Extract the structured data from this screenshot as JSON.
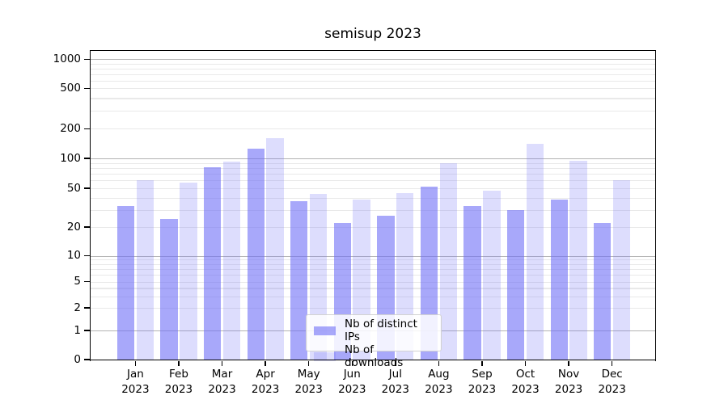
{
  "title": "semisup 2023",
  "chart_data": {
    "type": "bar",
    "title": "semisup 2023",
    "categories": [
      "Jan 2023",
      "Feb 2023",
      "Mar 2023",
      "Apr 2023",
      "May 2023",
      "Jun 2023",
      "Jul 2023",
      "Aug 2023",
      "Sep 2023",
      "Oct 2023",
      "Nov 2023",
      "Dec 2023"
    ],
    "series": [
      {
        "name": "Nb of distinct IPs",
        "values": [
          33,
          24,
          82,
          125,
          37,
          22,
          26,
          52,
          33,
          30,
          38,
          22
        ]
      },
      {
        "name": "Nb of downloads",
        "values": [
          60,
          57,
          92,
          160,
          44,
          38,
          45,
          89,
          47,
          140,
          94,
          60
        ]
      }
    ],
    "yscale": "symlog",
    "y_ticks": [
      0,
      1,
      2,
      5,
      10,
      20,
      50,
      100,
      200,
      500,
      1000
    ],
    "ylim": [
      0,
      1240
    ],
    "xlabel": "",
    "ylabel": "",
    "grid": true,
    "legend_position": "lower center"
  },
  "colors": {
    "series1_fill_rgba": "rgba(110,110,247,0.60)",
    "series2_fill_rgba": "rgba(110,110,247,0.235)",
    "series1_hex_effective": "#a8a8fa",
    "series2_hex_effective": "#dbdbfa",
    "grid_major": "#b3b3b3",
    "grid_minor": "#e9e9e9",
    "spine": "#000000",
    "background": "#ffffff"
  }
}
